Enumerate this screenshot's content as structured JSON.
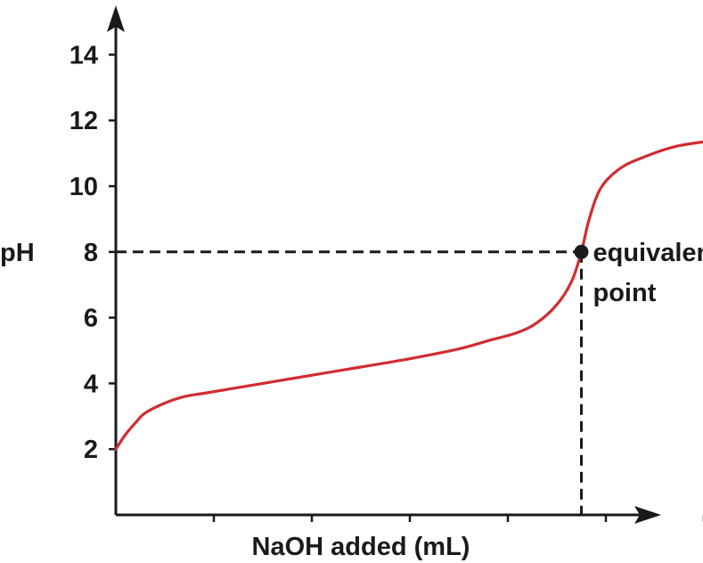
{
  "chart_data": {
    "type": "line",
    "title": "",
    "xlabel": "NaOH added (mL)",
    "ylabel": "pH",
    "xlim": [
      0,
      100
    ],
    "ylim": [
      0,
      15
    ],
    "x_ticks": [
      10,
      20,
      30,
      40,
      50,
      60
    ],
    "y_ticks": [
      {
        "value": 2,
        "label": "2"
      },
      {
        "value": 4,
        "label": "4"
      },
      {
        "value": 6,
        "label": "6"
      },
      {
        "value": 8,
        "label": "8"
      },
      {
        "value": 10,
        "label": "10"
      },
      {
        "value": 12,
        "label": "12"
      },
      {
        "value": 14,
        "label": "14"
      }
    ],
    "grid": false,
    "series": [
      {
        "color": "#d12c32",
        "points": [
          [
            0,
            2.0
          ],
          [
            1,
            2.45
          ],
          [
            2,
            2.8
          ],
          [
            3,
            3.1
          ],
          [
            5,
            3.4
          ],
          [
            7,
            3.6
          ],
          [
            9,
            3.7
          ],
          [
            12,
            3.85
          ],
          [
            16,
            4.05
          ],
          [
            20,
            4.25
          ],
          [
            25,
            4.5
          ],
          [
            30,
            4.75
          ],
          [
            35,
            5.05
          ],
          [
            38,
            5.3
          ],
          [
            41,
            5.55
          ],
          [
            43,
            5.85
          ],
          [
            45,
            6.4
          ],
          [
            46.5,
            7.1
          ],
          [
            47.5,
            8.0
          ],
          [
            48.3,
            9.0
          ],
          [
            49.5,
            9.95
          ],
          [
            51.5,
            10.55
          ],
          [
            54,
            10.9
          ],
          [
            57,
            11.2
          ],
          [
            60,
            11.35
          ],
          [
            62,
            11.4
          ]
        ]
      }
    ],
    "equivalence": {
      "x": 47.5,
      "y": 8.0,
      "label_line1": "equivalence",
      "label_line2": "point"
    },
    "colors": {
      "curve": "#d12c32",
      "axis": "#1a1a1a",
      "dashed": "#1a1a1a",
      "marker": "#1a1a1a"
    }
  }
}
